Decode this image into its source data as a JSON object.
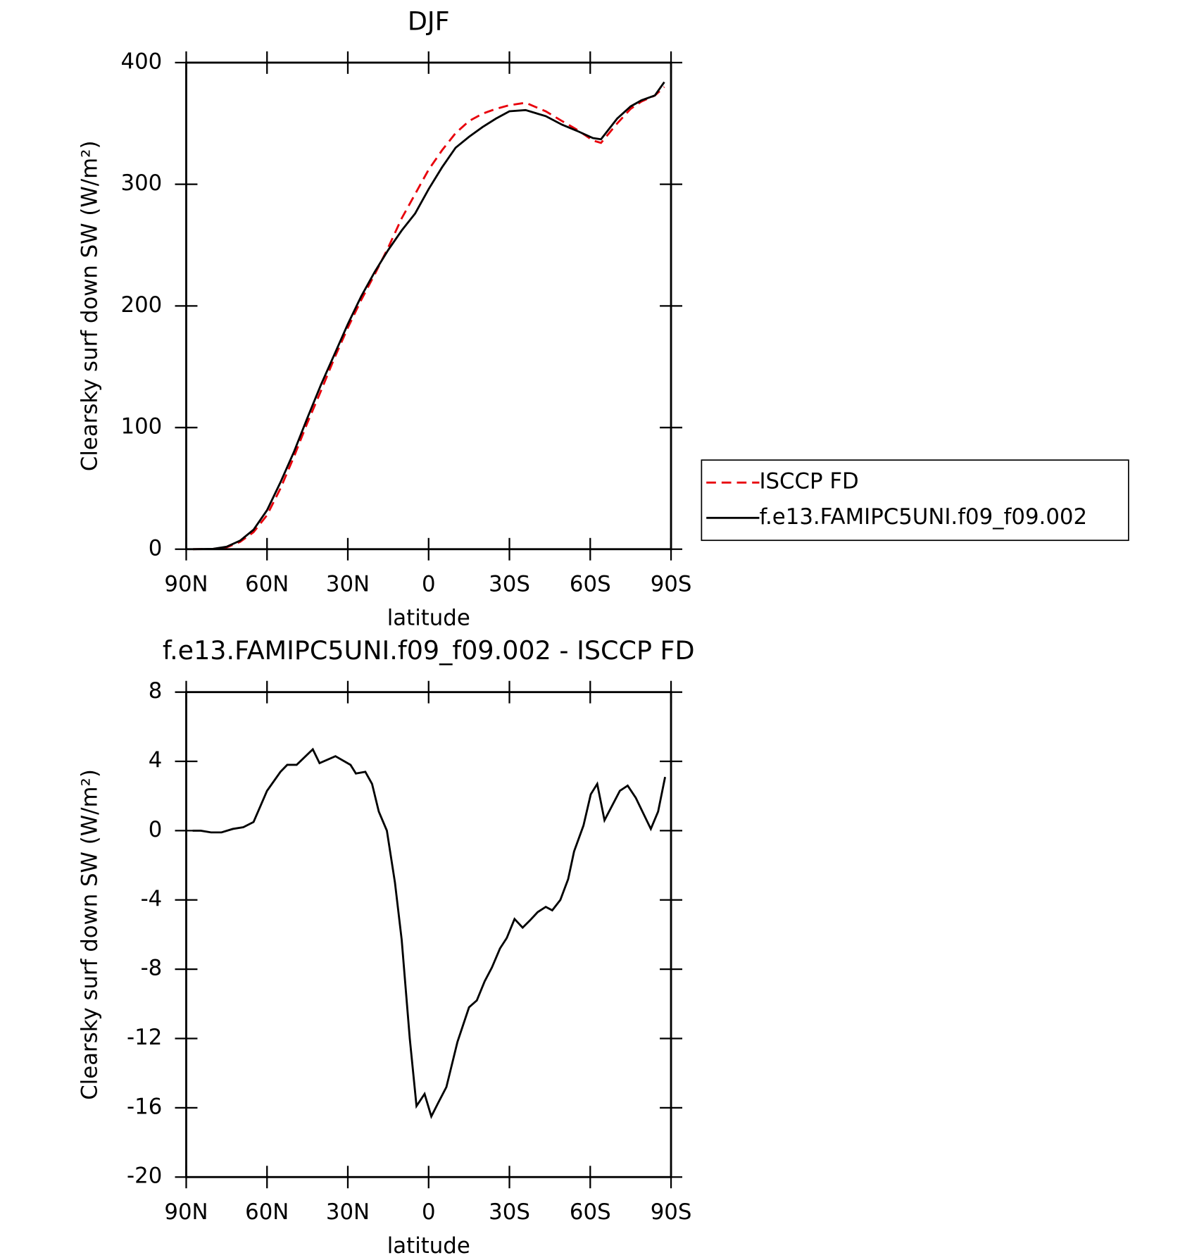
{
  "chart_data": [
    {
      "type": "line",
      "title": "DJF",
      "xlabel": "latitude",
      "ylabel": "Clearsky surf down SW (W/m²)",
      "x": [
        87.5,
        80,
        75,
        70,
        65,
        60,
        55,
        50,
        45,
        40,
        35,
        30,
        25,
        20,
        15,
        10,
        5,
        0,
        -5,
        -10,
        -15,
        -20,
        -25,
        -30,
        -36,
        -43.5,
        -49.5,
        -55,
        -61,
        -64,
        -70,
        -75,
        -79,
        -84,
        -87.5
      ],
      "series": [
        {
          "name": "ISCCP FD",
          "color": "#e8000b",
          "linestyle": "dashed",
          "values": [
            0,
            0.2,
            1.5,
            6,
            14,
            28,
            50,
            76,
            104,
            130,
            157,
            182,
            205,
            226,
            248,
            272,
            292,
            312,
            328,
            342,
            352,
            358,
            362,
            365,
            367,
            360,
            352,
            345,
            336,
            334,
            350,
            362,
            368,
            373,
            380
          ]
        },
        {
          "name": "f.e13.FAMIPC5UNI.f09_f09.002",
          "color": "#000000",
          "linestyle": "solid",
          "values": [
            0,
            0.3,
            2,
            7,
            16,
            32,
            55,
            80,
            108,
            135,
            160,
            185,
            208,
            228,
            246,
            262,
            276,
            296,
            314,
            330,
            339,
            347,
            354,
            360,
            361,
            356,
            349,
            344,
            338,
            337,
            354,
            364,
            369,
            373,
            384
          ]
        }
      ],
      "xlim": [
        90,
        -90
      ],
      "xticks": [
        {
          "value": 90,
          "label": "90N"
        },
        {
          "value": 60,
          "label": "60N"
        },
        {
          "value": 30,
          "label": "30N"
        },
        0,
        {
          "value": -30,
          "label": "30S"
        },
        {
          "value": -60,
          "label": "60S"
        },
        {
          "value": -90,
          "label": "90S"
        }
      ],
      "ylim": [
        0,
        400
      ],
      "yticks": [
        0,
        100,
        200,
        300,
        400
      ],
      "legend": "right"
    },
    {
      "type": "line",
      "title": "f.e13.FAMIPC5UNI.f09_f09.002 - ISCCP FD",
      "xlabel": "latitude",
      "ylabel": "Clearsky surf down SW (W/m²)",
      "x": [
        87.6,
        84.6,
        80.8,
        76.9,
        72.7,
        68.8,
        65,
        60,
        55,
        52.5,
        49,
        43,
        40.5,
        34.6,
        29,
        27,
        23.5,
        21,
        18.5,
        15.5,
        12.5,
        10,
        7,
        4.5,
        1.5,
        -1,
        -3.6,
        -6.6,
        -10.7,
        -15,
        -17.9,
        -20.8,
        -23.5,
        -26.5,
        -29,
        -31.9,
        -34.9,
        -37.5,
        -40.5,
        -43.5,
        -45.9,
        -48.9,
        -51.8,
        -54,
        -57.5,
        -60.2,
        -62.6,
        -65.3,
        -71,
        -73.9,
        -76.9,
        -82.5,
        -85.2,
        -87.8
      ],
      "series": [
        {
          "color": "#000000",
          "linestyle": "solid",
          "values": [
            0,
            0,
            -0.1,
            -0.1,
            0.1,
            0.2,
            0.5,
            2.3,
            3.4,
            3.8,
            3.8,
            4.7,
            3.9,
            4.3,
            3.8,
            3.3,
            3.4,
            2.7,
            1.1,
            0,
            -3,
            -6.3,
            -12,
            -15.9,
            -15.2,
            -16.5,
            -15.7,
            -14.8,
            -12.2,
            -10.2,
            -9.8,
            -8.7,
            -7.9,
            -6.8,
            -6.2,
            -5.1,
            -5.6,
            -5.2,
            -4.7,
            -4.4,
            -4.6,
            -4,
            -2.8,
            -1.2,
            0.3,
            2.1,
            2.7,
            0.6,
            2.3,
            2.6,
            1.9,
            0.1,
            1.1,
            3.1
          ]
        }
      ],
      "xlim": [
        90,
        -90
      ],
      "xticks": [
        {
          "value": 90,
          "label": "90N"
        },
        {
          "value": 60,
          "label": "60N"
        },
        {
          "value": 30,
          "label": "30N"
        },
        0,
        {
          "value": -30,
          "label": "30S"
        },
        {
          "value": -60,
          "label": "60S"
        },
        {
          "value": -90,
          "label": "90S"
        }
      ],
      "ylim": [
        -20,
        8
      ],
      "yticks": [
        -20,
        -16,
        -12,
        -8,
        -4,
        0,
        4,
        8
      ]
    }
  ]
}
